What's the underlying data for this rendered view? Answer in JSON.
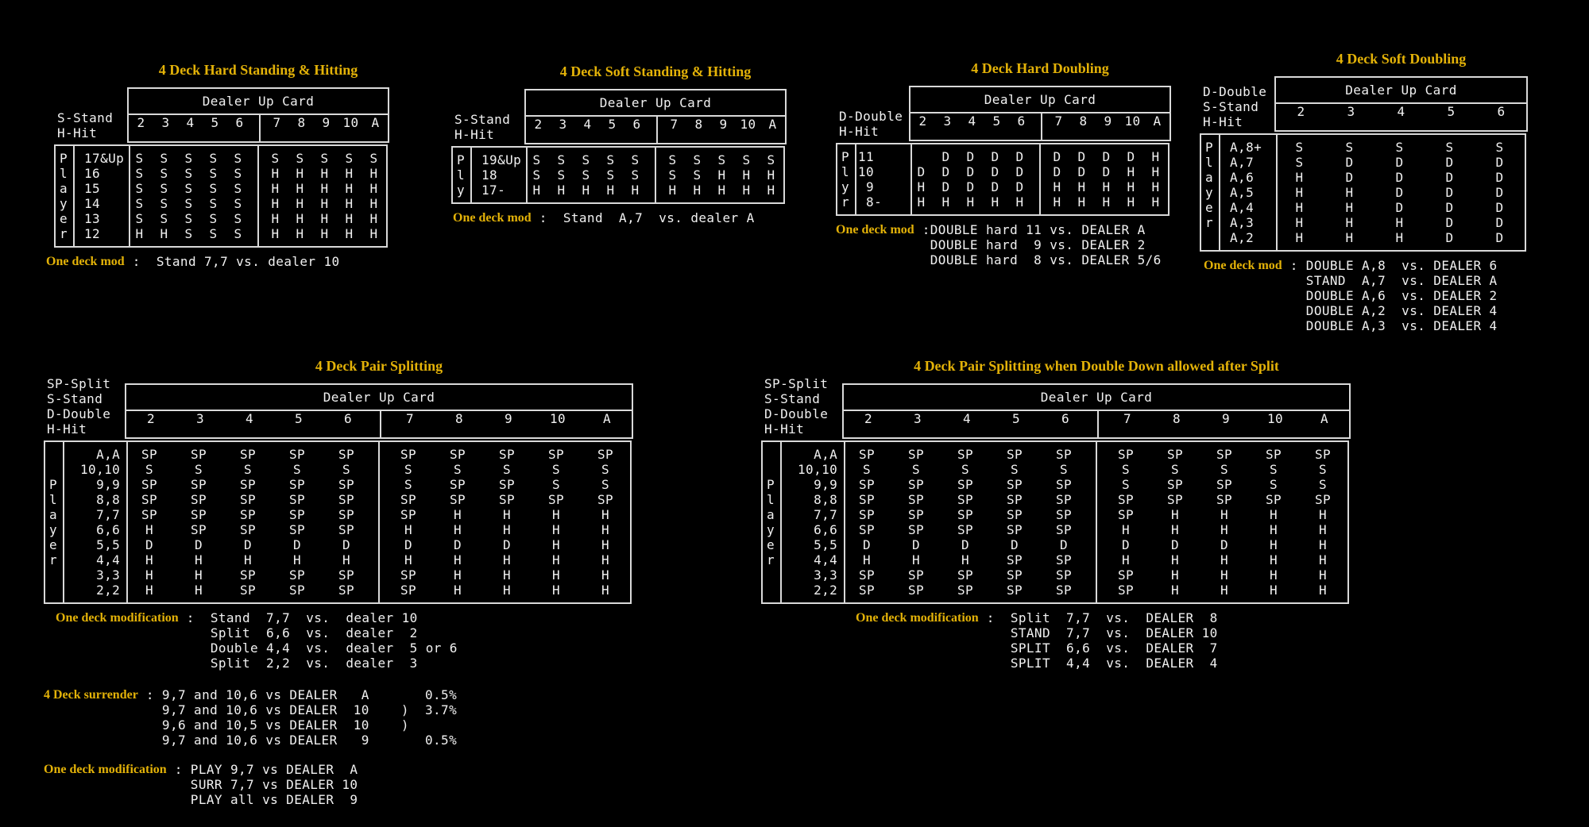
{
  "colors": {
    "background": "#000000",
    "title_gold": "#e3b208",
    "text_white": "#f1f1f1",
    "line_gray": "#d9d9d9"
  },
  "tables": [
    {
      "id": "hard-standing-hitting",
      "title": "4 Deck Hard Standing & Hitting",
      "legend": [
        "S-Stand",
        "H-Hit"
      ],
      "dealer_header": "Dealer Up Card",
      "columns": [
        "2",
        "3",
        "4",
        "5",
        "6",
        "7",
        "8",
        "9",
        "10",
        "A"
      ],
      "group_split": 5,
      "player_letters": [
        "P",
        "l",
        "a",
        "y",
        "e",
        "r"
      ],
      "rows": [
        {
          "hand": "17&Up",
          "cells": [
            "S",
            "S",
            "S",
            "S",
            "S",
            "S",
            "S",
            "S",
            "S",
            "S"
          ]
        },
        {
          "hand": "16",
          "cells": [
            "S",
            "S",
            "S",
            "S",
            "S",
            "H",
            "H",
            "H",
            "H",
            "H"
          ]
        },
        {
          "hand": "15",
          "cells": [
            "S",
            "S",
            "S",
            "S",
            "S",
            "H",
            "H",
            "H",
            "H",
            "H"
          ]
        },
        {
          "hand": "14",
          "cells": [
            "S",
            "S",
            "S",
            "S",
            "S",
            "H",
            "H",
            "H",
            "H",
            "H"
          ]
        },
        {
          "hand": "13",
          "cells": [
            "S",
            "S",
            "S",
            "S",
            "S",
            "H",
            "H",
            "H",
            "H",
            "H"
          ]
        },
        {
          "hand": "12",
          "cells": [
            "H",
            "H",
            "S",
            "S",
            "S",
            "H",
            "H",
            "H",
            "H",
            "H"
          ]
        }
      ],
      "note_label": "One deck mod",
      "note_sep": " :  ",
      "note_lines": [
        "Stand 7,7 vs. dealer 10"
      ]
    },
    {
      "id": "soft-standing-hitting",
      "title": "4 Deck Soft Standing & Hitting",
      "legend": [
        "S-Stand",
        "H-Hit"
      ],
      "dealer_header": "Dealer Up Card",
      "columns": [
        "2",
        "3",
        "4",
        "5",
        "6",
        "7",
        "8",
        "9",
        "10",
        "A"
      ],
      "group_split": 5,
      "player_letters": [
        "P",
        "l",
        "y"
      ],
      "rows": [
        {
          "hand": "19&Up",
          "cells": [
            "S",
            "S",
            "S",
            "S",
            "S",
            "S",
            "S",
            "S",
            "S",
            "S"
          ]
        },
        {
          "hand": "18",
          "cells": [
            "S",
            "S",
            "S",
            "S",
            "S",
            "S",
            "S",
            "H",
            "H",
            "H"
          ]
        },
        {
          "hand": "17-",
          "cells": [
            "H",
            "H",
            "H",
            "H",
            "H",
            "H",
            "H",
            "H",
            "H",
            "H"
          ]
        }
      ],
      "note_label": "One deck mod",
      "note_sep": " :  ",
      "note_lines": [
        "Stand  A,7  vs. dealer A"
      ]
    },
    {
      "id": "hard-doubling",
      "title": "4 Deck Hard Doubling",
      "legend": [
        "D-Double",
        "H-Hit"
      ],
      "dealer_header": "Dealer Up Card",
      "columns": [
        "2",
        "3",
        "4",
        "5",
        "6",
        "7",
        "8",
        "9",
        "10",
        "A"
      ],
      "group_split": 5,
      "player_letters": [
        "P",
        "l",
        "y",
        "r"
      ],
      "rows": [
        {
          "hand": "11",
          "cells": [
            "",
            "D",
            "D",
            "D",
            "D",
            "D",
            "D",
            "D",
            "D",
            "H"
          ]
        },
        {
          "hand": "10",
          "cells": [
            "D",
            "D",
            "D",
            "D",
            "D",
            "D",
            "D",
            "D",
            "H",
            "H"
          ]
        },
        {
          "hand": " 9",
          "cells": [
            "H",
            "D",
            "D",
            "D",
            "D",
            "H",
            "H",
            "H",
            "H",
            "H"
          ]
        },
        {
          "hand": " 8-",
          "cells": [
            "H",
            "H",
            "H",
            "H",
            "H",
            "H",
            "H",
            "H",
            "H",
            "H"
          ]
        }
      ],
      "note_label": "One deck mod",
      "note_sep": " :",
      "note_lines": [
        "DOUBLE hard 11 vs. DEALER A",
        "DOUBLE hard  9 vs. DEALER 2",
        "DOUBLE hard  8 vs. DEALER 5/6"
      ]
    },
    {
      "id": "soft-doubling",
      "title": "4 Deck Soft Doubling",
      "legend": [
        "D-Double",
        "S-Stand",
        "H-Hit"
      ],
      "dealer_header": "Dealer Up Card",
      "columns": [
        "2",
        "3",
        "4",
        "5",
        "6"
      ],
      "group_split": null,
      "player_letters": [
        "P",
        "l",
        "a",
        "y",
        "e",
        "r",
        ""
      ],
      "rows": [
        {
          "hand": "A,8+",
          "cells": [
            "S",
            "S",
            "S",
            "S",
            "S"
          ]
        },
        {
          "hand": "A,7",
          "cells": [
            "S",
            "D",
            "D",
            "D",
            "D"
          ]
        },
        {
          "hand": "A,6",
          "cells": [
            "H",
            "D",
            "D",
            "D",
            "D"
          ]
        },
        {
          "hand": "A,5",
          "cells": [
            "H",
            "H",
            "D",
            "D",
            "D"
          ]
        },
        {
          "hand": "A,4",
          "cells": [
            "H",
            "H",
            "D",
            "D",
            "D"
          ]
        },
        {
          "hand": "A,3",
          "cells": [
            "H",
            "H",
            "H",
            "D",
            "D"
          ]
        },
        {
          "hand": "A,2",
          "cells": [
            "H",
            "H",
            "H",
            "D",
            "D"
          ]
        }
      ],
      "note_label": "One deck mod",
      "note_sep": " : ",
      "note_lines": [
        "DOUBLE A,8  vs. DEALER 6",
        "STAND  A,7  vs. DEALER A",
        "DOUBLE A,6  vs. DEALER 2",
        "DOUBLE A,2  vs. DEALER 4",
        "DOUBLE A,3  vs. DEALER 4"
      ]
    },
    {
      "id": "pair-splitting",
      "title": "4 Deck Pair Splitting",
      "legend": [
        "SP-Split",
        "S-Stand",
        "D-Double",
        "H-Hit"
      ],
      "dealer_header": "Dealer Up Card",
      "columns": [
        "2",
        "3",
        "4",
        "5",
        "6",
        "7",
        "8",
        "9",
        "10",
        "A"
      ],
      "group_split": 5,
      "player_letters": [
        "",
        "",
        "P",
        "l",
        "a",
        "y",
        "e",
        "r",
        "",
        ""
      ],
      "rows": [
        {
          "hand": "  A,A",
          "cells": [
            "SP",
            "SP",
            "SP",
            "SP",
            "SP",
            "SP",
            "SP",
            "SP",
            "SP",
            "SP"
          ]
        },
        {
          "hand": "10,10",
          "cells": [
            "S",
            "S",
            "S",
            "S",
            "S",
            "S",
            "S",
            "S",
            "S",
            "S"
          ]
        },
        {
          "hand": "  9,9",
          "cells": [
            "SP",
            "SP",
            "SP",
            "SP",
            "SP",
            "S",
            "SP",
            "SP",
            "S",
            "S"
          ]
        },
        {
          "hand": "  8,8",
          "cells": [
            "SP",
            "SP",
            "SP",
            "SP",
            "SP",
            "SP",
            "SP",
            "SP",
            "SP",
            "SP"
          ]
        },
        {
          "hand": "  7,7",
          "cells": [
            "SP",
            "SP",
            "SP",
            "SP",
            "SP",
            "SP",
            "H",
            "H",
            "H",
            "H"
          ]
        },
        {
          "hand": "  6,6",
          "cells": [
            "H",
            "SP",
            "SP",
            "SP",
            "SP",
            "H",
            "H",
            "H",
            "H",
            "H"
          ]
        },
        {
          "hand": "  5,5",
          "cells": [
            "D",
            "D",
            "D",
            "D",
            "D",
            "D",
            "D",
            "D",
            "H",
            "H"
          ]
        },
        {
          "hand": "  4,4",
          "cells": [
            "H",
            "H",
            "H",
            "H",
            "H",
            "H",
            "H",
            "H",
            "H",
            "H"
          ]
        },
        {
          "hand": "  3,3",
          "cells": [
            "H",
            "H",
            "SP",
            "SP",
            "SP",
            "SP",
            "H",
            "H",
            "H",
            "H"
          ]
        },
        {
          "hand": "  2,2",
          "cells": [
            "H",
            "H",
            "SP",
            "SP",
            "SP",
            "SP",
            "H",
            "H",
            "H",
            "H"
          ]
        }
      ],
      "note_label": "One deck modification",
      "note_sep": " :  ",
      "note_lines": [
        "Stand  7,7  vs.  dealer 10",
        "Split  6,6  vs.  dealer  2",
        "Double 4,4  vs.  dealer  5 or 6",
        "Split  2,2  vs.  dealer  3"
      ]
    },
    {
      "id": "pair-splitting-das",
      "title": "4 Deck Pair Splitting when Double Down allowed after Split",
      "legend": [
        "SP-Split",
        "S-Stand",
        "D-Double",
        "H-Hit"
      ],
      "dealer_header": "Dealer Up Card",
      "columns": [
        "2",
        "3",
        "4",
        "5",
        "6",
        "7",
        "8",
        "9",
        "10",
        "A"
      ],
      "group_split": 5,
      "player_letters": [
        "",
        "",
        "P",
        "l",
        "a",
        "y",
        "e",
        "r",
        "",
        ""
      ],
      "rows": [
        {
          "hand": "  A,A",
          "cells": [
            "SP",
            "SP",
            "SP",
            "SP",
            "SP",
            "SP",
            "SP",
            "SP",
            "SP",
            "SP"
          ]
        },
        {
          "hand": "10,10",
          "cells": [
            "S",
            "S",
            "S",
            "S",
            "S",
            "S",
            "S",
            "S",
            "S",
            "S"
          ]
        },
        {
          "hand": "  9,9",
          "cells": [
            "SP",
            "SP",
            "SP",
            "SP",
            "SP",
            "S",
            "SP",
            "SP",
            "S",
            "S"
          ]
        },
        {
          "hand": "  8,8",
          "cells": [
            "SP",
            "SP",
            "SP",
            "SP",
            "SP",
            "SP",
            "SP",
            "SP",
            "SP",
            "SP"
          ]
        },
        {
          "hand": "  7,7",
          "cells": [
            "SP",
            "SP",
            "SP",
            "SP",
            "SP",
            "SP",
            "H",
            "H",
            "H",
            "H"
          ]
        },
        {
          "hand": "  6,6",
          "cells": [
            "SP",
            "SP",
            "SP",
            "SP",
            "SP",
            "H",
            "H",
            "H",
            "H",
            "H"
          ]
        },
        {
          "hand": "  5,5",
          "cells": [
            "D",
            "D",
            "D",
            "D",
            "D",
            "D",
            "D",
            "D",
            "H",
            "H"
          ]
        },
        {
          "hand": "  4,4",
          "cells": [
            "H",
            "H",
            "H",
            "SP",
            "SP",
            "H",
            "H",
            "H",
            "H",
            "H"
          ]
        },
        {
          "hand": "  3,3",
          "cells": [
            "SP",
            "SP",
            "SP",
            "SP",
            "SP",
            "SP",
            "H",
            "H",
            "H",
            "H"
          ]
        },
        {
          "hand": "  2,2",
          "cells": [
            "SP",
            "SP",
            "SP",
            "SP",
            "SP",
            "SP",
            "H",
            "H",
            "H",
            "H"
          ]
        }
      ],
      "note_label": "One deck modification",
      "note_sep": " :  ",
      "note_lines": [
        "Split  7,7  vs.  DEALER  8",
        "STAND  7,7  vs.  DEALER 10",
        "SPLIT  6,6  vs.  DEALER  7",
        "SPLIT  4,4  vs.  DEALER  4"
      ]
    }
  ],
  "surrender": {
    "label": "4 Deck surrender",
    "sep": " : ",
    "lines": [
      "9,7 and 10,6 vs DEALER   A       0.5%",
      "9,7 and 10,6 vs DEALER  10    )  3.7%",
      "9,6 and 10,5 vs DEALER  10    )",
      "9,7 and 10,6 vs DEALER   9       0.5%"
    ]
  },
  "one_deck_modification": {
    "label": "One deck modification",
    "sep": " : ",
    "lines": [
      "PLAY 9,7 vs DEALER  A",
      "SURR 7,7 vs DEALER 10",
      "PLAY all vs DEALER  9"
    ]
  }
}
